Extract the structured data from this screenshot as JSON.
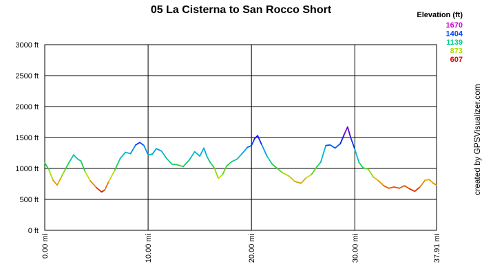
{
  "chart_data": {
    "type": "line",
    "title": "05 La Cisterna to San Rocco Short",
    "xlabel": "",
    "ylabel": "",
    "xlim": [
      0,
      37.91
    ],
    "ylim": [
      0,
      3000
    ],
    "grid": true,
    "x_ticks": [
      {
        "value": 0,
        "label": "0.00 mi"
      },
      {
        "value": 10,
        "label": "10.00 mi"
      },
      {
        "value": 20,
        "label": "20.00 mi"
      },
      {
        "value": 30,
        "label": "30.00 mi"
      },
      {
        "value": 37.91,
        "label": "37.91 mi"
      }
    ],
    "y_ticks": [
      {
        "value": 0,
        "label": "0 ft"
      },
      {
        "value": 500,
        "label": "500 ft"
      },
      {
        "value": 1000,
        "label": "1000 ft"
      },
      {
        "value": 1500,
        "label": "1500 ft"
      },
      {
        "value": 2000,
        "label": "2000 ft"
      },
      {
        "value": 2500,
        "label": "2500 ft"
      },
      {
        "value": 3000,
        "label": "3000 ft"
      }
    ],
    "legend": {
      "title": "Elevation (ft)",
      "position": "top-right",
      "entries": [
        {
          "label": "1670",
          "color": "#cc00cc"
        },
        {
          "label": "1404",
          "color": "#0044ff"
        },
        {
          "label": "1139",
          "color": "#00cc88"
        },
        {
          "label": "873",
          "color": "#aadd00"
        },
        {
          "label": "607",
          "color": "#dd0000"
        }
      ]
    },
    "series": [
      {
        "x": [
          0.0,
          0.4,
          0.8,
          1.2,
          1.6,
          2.0,
          2.4,
          2.8,
          3.2,
          3.5,
          3.9,
          4.4,
          5.0,
          5.5,
          5.8,
          6.2,
          6.8,
          7.3,
          7.8,
          8.3,
          8.8,
          9.2,
          9.6,
          10.0,
          10.4,
          10.8,
          11.3,
          11.8,
          12.3,
          12.8,
          13.4,
          14.0,
          14.5,
          15.0,
          15.4,
          15.7,
          16.0,
          16.4,
          16.8,
          17.2,
          17.6,
          18.1,
          18.6,
          19.1,
          19.6,
          20.0,
          20.3,
          20.6,
          21.0,
          21.5,
          22.0,
          22.5,
          23.0,
          23.6,
          24.2,
          24.8,
          25.3,
          25.8,
          26.3,
          26.7,
          27.2,
          27.6,
          28.1,
          28.6,
          29.0,
          29.3,
          29.6,
          30.0,
          30.4,
          30.8,
          31.3,
          31.8,
          32.3,
          32.8,
          33.3,
          33.8,
          34.3,
          34.8,
          35.3,
          35.8,
          36.3,
          36.8,
          37.2,
          37.6,
          37.91
        ],
        "y": [
          1090,
          980,
          810,
          730,
          860,
          990,
          1110,
          1220,
          1150,
          1120,
          950,
          800,
          690,
          620,
          650,
          790,
          980,
          1160,
          1260,
          1240,
          1380,
          1420,
          1370,
          1220,
          1230,
          1320,
          1280,
          1160,
          1070,
          1060,
          1030,
          1140,
          1270,
          1200,
          1330,
          1190,
          1100,
          1010,
          840,
          900,
          1040,
          1110,
          1150,
          1240,
          1340,
          1370,
          1480,
          1530,
          1380,
          1200,
          1070,
          1000,
          930,
          880,
          790,
          760,
          850,
          900,
          1020,
          1100,
          1370,
          1380,
          1330,
          1400,
          1560,
          1670,
          1500,
          1310,
          1100,
          1010,
          990,
          860,
          800,
          720,
          680,
          700,
          680,
          720,
          670,
          630,
          700,
          810,
          820,
          760,
          730
        ]
      }
    ]
  },
  "credit": "created by GPSVisualizer.com"
}
